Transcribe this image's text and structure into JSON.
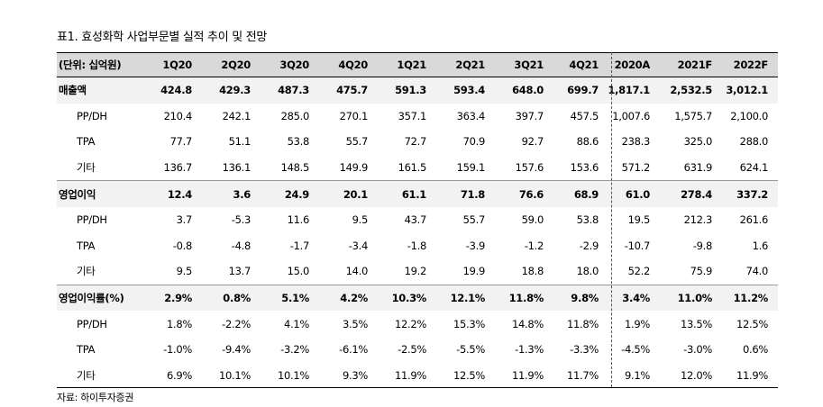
{
  "title": "표1. 효성화학 사업부문별 실적 추이 및 전망",
  "unit": "(단위: 십억원)",
  "columns": [
    "1Q20",
    "2Q20",
    "3Q20",
    "4Q20",
    "1Q21",
    "2Q21",
    "3Q21",
    "4Q21",
    "2020A",
    "2021F",
    "2022F"
  ],
  "rows": [
    {
      "label": "매출액",
      "values": [
        "424.8",
        "429.3",
        "487.3",
        "475.7",
        "591.3",
        "593.4",
        "648.0",
        "699.7",
        "1,817.1",
        "2,532.5",
        "3,012.1"
      ]
    },
    {
      "label": "PP/DH",
      "values": [
        "210.4",
        "242.1",
        "285.0",
        "270.1",
        "357.1",
        "363.4",
        "397.7",
        "457.5",
        "1,007.6",
        "1,575.7",
        "2,100.0"
      ]
    },
    {
      "label": "TPA",
      "values": [
        "77.7",
        "51.1",
        "53.8",
        "55.7",
        "72.7",
        "70.9",
        "92.7",
        "88.6",
        "238.3",
        "325.0",
        "288.0"
      ]
    },
    {
      "label": "기타",
      "values": [
        "136.7",
        "136.1",
        "148.5",
        "149.9",
        "161.5",
        "159.1",
        "157.6",
        "153.6",
        "571.2",
        "631.9",
        "624.1"
      ]
    },
    {
      "label": "영업이익",
      "values": [
        "12.4",
        "3.6",
        "24.9",
        "20.1",
        "61.1",
        "71.8",
        "76.6",
        "68.9",
        "61.0",
        "278.4",
        "337.2"
      ]
    },
    {
      "label": "PP/DH",
      "values": [
        "3.7",
        "-5.3",
        "11.6",
        "9.5",
        "43.7",
        "55.7",
        "59.0",
        "53.8",
        "19.5",
        "212.3",
        "261.6"
      ]
    },
    {
      "label": "TPA",
      "values": [
        "-0.8",
        "-4.8",
        "-1.7",
        "-3.4",
        "-1.8",
        "-3.9",
        "-1.2",
        "-2.9",
        "-10.7",
        "-9.8",
        "1.6"
      ]
    },
    {
      "label": "기타",
      "values": [
        "9.5",
        "13.7",
        "15.0",
        "14.0",
        "19.2",
        "19.9",
        "18.8",
        "18.0",
        "52.2",
        "75.9",
        "74.0"
      ]
    },
    {
      "label": "영업이익률(%)",
      "values": [
        "2.9%",
        "0.8%",
        "5.1%",
        "4.2%",
        "10.3%",
        "12.1%",
        "11.8%",
        "9.8%",
        "3.4%",
        "11.0%",
        "11.2%"
      ]
    },
    {
      "label": "PP/DH",
      "values": [
        "1.8%",
        "-2.2%",
        "4.1%",
        "3.5%",
        "12.2%",
        "15.3%",
        "14.8%",
        "11.8%",
        "1.9%",
        "13.5%",
        "12.5%"
      ]
    },
    {
      "label": "TPA",
      "values": [
        "-1.0%",
        "-9.4%",
        "-3.2%",
        "-6.1%",
        "-2.5%",
        "-5.5%",
        "-1.3%",
        "-3.3%",
        "-4.5%",
        "-3.0%",
        "0.6%"
      ]
    },
    {
      "label": "기타",
      "values": [
        "6.9%",
        "10.1%",
        "10.1%",
        "9.3%",
        "11.9%",
        "12.5%",
        "11.9%",
        "11.7%",
        "9.1%",
        "12.0%",
        "11.9%"
      ]
    }
  ],
  "source": "자료: 하이투자증권"
}
